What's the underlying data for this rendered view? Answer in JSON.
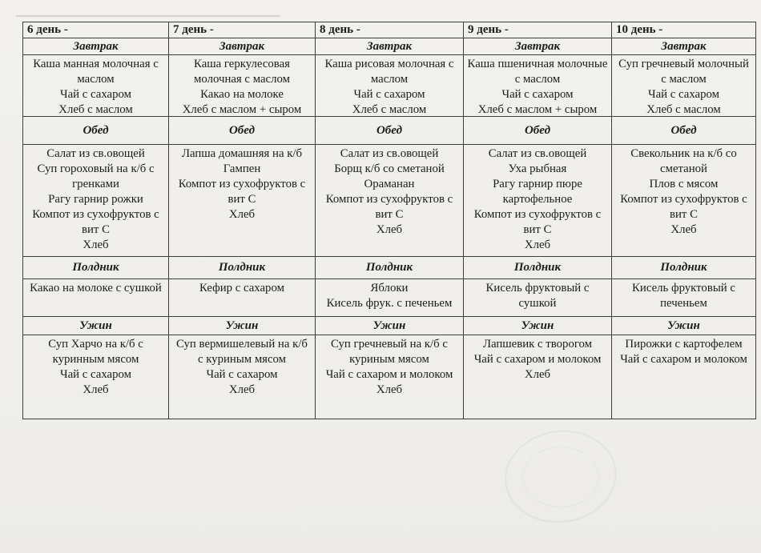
{
  "document": {
    "type": "scanned-menu-table",
    "paper_color": "#f1f0ec",
    "border_color": "#3d3d3d",
    "section_labels": {
      "breakfast": "Завтрак",
      "lunch": "Обед",
      "snack": "Полдник",
      "dinner": "Ужин"
    },
    "days": [
      {
        "title": "6 день -",
        "breakfast": "Каша манная молочная с маслом\nЧай с сахаром\nХлеб с маслом",
        "lunch": "Салат из св.овощей\nСуп гороховый на к/б с гренками\nРагу гарнир рожки\nКомпот из сухофруктов с вит С\nХлеб",
        "snack": "Какао на молоке с сушкой",
        "dinner": "Суп Харчо на к/б с куринным мясом\nЧай с сахаром\nХлеб"
      },
      {
        "title": "7 день -",
        "breakfast": "Каша геркулесовая молочная с маслом\nКакао на молоке\nХлеб с маслом + сыром",
        "lunch": "Лапша домашняя на к/б\nГампен\nКомпот из сухофруктов с вит С\nХлеб",
        "snack": "Кефир с сахаром",
        "dinner": "Суп вермишелевый на к/б с куриным мясом\nЧай с сахаром\nХлеб"
      },
      {
        "title": "8 день -",
        "breakfast": "Каша рисовая молочная с маслом\nЧай с сахаром\nХлеб с маслом",
        "lunch": "Салат из св.овощей\nБорщ к/б со сметаной\nОраманан\nКомпот из сухофруктов с вит С\nХлеб",
        "snack": "Яблоки\nКисель фрук. с печеньем",
        "dinner": "Суп гречневый на к/б с куриным мясом\nЧай с сахаром и молоком\nХлеб"
      },
      {
        "title": "9 день -",
        "breakfast": "Каша пшеничная молочные с маслом\nЧай с сахаром\nХлеб с маслом + сыром",
        "lunch": "Салат из св.овощей\nУха рыбная\nРагу гарнир пюре картофельное\nКомпот из сухофруктов с вит С\nХлеб",
        "snack": "Кисель фруктовый с сушкой",
        "dinner": "Лапшевик с творогом\nЧай с сахаром и молоком\nХлеб"
      },
      {
        "title": "10 день -",
        "breakfast": "Суп гречневый молочный с маслом\nЧай с сахаром\nХлеб с маслом",
        "lunch": "Свекольник на к/б со сметаной\nПлов с мясом\nКомпот из сухофруктов с вит С\nХлеб",
        "snack": "Кисель фруктовый с печеньем",
        "dinner": "Пирожки с картофелем\nЧай с сахаром и молоком"
      }
    ]
  }
}
